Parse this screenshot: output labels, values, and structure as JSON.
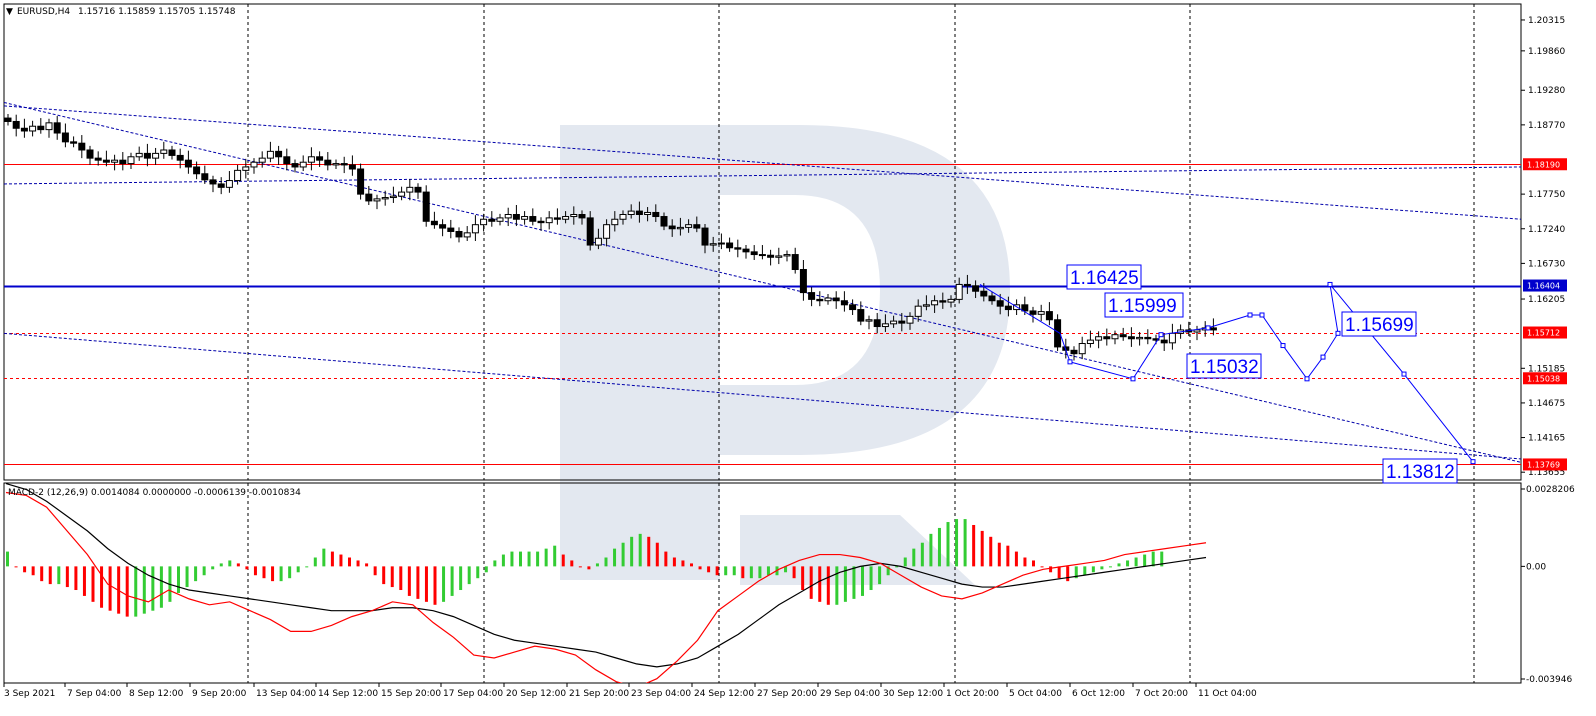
{
  "header": {
    "symbol": "EURUSD,H4",
    "ohlc": "1.15716 1.15859 1.15705 1.15748",
    "macd": "MACD-2 (12,26,9) 0.0014084 0.0000000 -0.0006139 -0.0010834"
  },
  "colors": {
    "resistance": "#ff0000",
    "support": "#0000cc",
    "forecast": "#0000ff",
    "hist_up": "#33cc33",
    "hist_down": "#ff0000",
    "signal": "#000000",
    "macd_line": "#ff0000"
  },
  "chart_data": [
    {
      "type": "candlestick",
      "xlabels": [
        "3 Sep 2021",
        "7 Sep 04:00",
        "8 Sep 12:00",
        "9 Sep 20:00",
        "13 Sep 04:00",
        "14 Sep 12:00",
        "15 Sep 20:00",
        "17 Sep 04:00",
        "20 Sep 12:00",
        "21 Sep 20:00",
        "23 Sep 04:00",
        "24 Sep 12:00",
        "27 Sep 20:00",
        "29 Sep 04:00",
        "30 Sep 12:00",
        "1 Oct 20:00",
        "5 Oct 04:00",
        "6 Oct 12:00",
        "7 Oct 20:00",
        "11 Oct 04:00"
      ],
      "ytick_labels": [
        "1.20315",
        "1.19860",
        "1.19280",
        "1.18770",
        "1.17750",
        "1.17240",
        "1.16730",
        "1.16205",
        "1.15185",
        "1.14675",
        "1.14165",
        "1.13655"
      ],
      "ylim": [
        1.1354,
        1.2055
      ],
      "price_tags": [
        {
          "label": "1.18190",
          "value": 1.1819,
          "color": "#ff0000",
          "style": "solid"
        },
        {
          "label": "1.16404",
          "value": 1.16404,
          "color": "#0000cc",
          "style": "solid"
        },
        {
          "label": "1.15712",
          "value": 1.15712,
          "color": "#ff0000",
          "style": "dashed"
        },
        {
          "label": "1.15038",
          "value": 1.15038,
          "color": "#ff0000",
          "style": "dashed"
        },
        {
          "label": "1.13769",
          "value": 1.13769,
          "color": "#ff0000",
          "style": "solid"
        }
      ],
      "forecast_labels": [
        "1.16425",
        "1.15999",
        "1.15032",
        "1.15699",
        "1.13812"
      ],
      "close_series": [
        1.1882,
        1.1872,
        1.1868,
        1.1875,
        1.187,
        1.188,
        1.1865,
        1.1852,
        1.185,
        1.184,
        1.1828,
        1.1825,
        1.1822,
        1.1825,
        1.182,
        1.183,
        1.1835,
        1.1828,
        1.1835,
        1.184,
        1.1832,
        1.1825,
        1.1815,
        1.1805,
        1.1796,
        1.179,
        1.1785,
        1.1795,
        1.181,
        1.1815,
        1.1822,
        1.1828,
        1.1838,
        1.183,
        1.182,
        1.1815,
        1.1822,
        1.183,
        1.1825,
        1.1818,
        1.182,
        1.1818,
        1.1812,
        1.1775,
        1.1765,
        1.1768,
        1.177,
        1.1772,
        1.1778,
        1.1785,
        1.1778,
        1.1735,
        1.173,
        1.1725,
        1.172,
        1.1712,
        1.1718,
        1.173,
        1.1738,
        1.1735,
        1.174,
        1.1745,
        1.1738,
        1.1742,
        1.1735,
        1.1733,
        1.174,
        1.1738,
        1.1742,
        1.1745,
        1.174,
        1.17,
        1.171,
        1.173,
        1.1738,
        1.1745,
        1.175,
        1.1745,
        1.1748,
        1.1742,
        1.1728,
        1.1724,
        1.1726,
        1.173,
        1.1725,
        1.17,
        1.1702,
        1.1703,
        1.1696,
        1.1694,
        1.169,
        1.1686,
        1.1685,
        1.1682,
        1.1684,
        1.1686,
        1.1664,
        1.163,
        1.162,
        1.1618,
        1.1622,
        1.1618,
        1.1612,
        1.1605,
        1.1588,
        1.159,
        1.158,
        1.1584,
        1.1588,
        1.1585,
        1.1595,
        1.161,
        1.1612,
        1.1618,
        1.1616,
        1.162,
        1.1642,
        1.164,
        1.1632,
        1.1625,
        1.1618,
        1.161,
        1.1605,
        1.1612,
        1.1603,
        1.1598,
        1.1602,
        1.159,
        1.155,
        1.1545,
        1.154,
        1.1555,
        1.156,
        1.1565,
        1.1562,
        1.1568,
        1.1565,
        1.1562,
        1.1564,
        1.1562,
        1.156,
        1.1556,
        1.157,
        1.1575,
        1.1572,
        1.1575,
        1.1578,
        1.1575
      ]
    },
    {
      "type": "bar",
      "name": "MACD-2 (12,26,9)",
      "ytick_labels": [
        "0.0028206",
        "0.00",
        "-0.003946"
      ],
      "ylim": [
        -0.003946,
        0.0028206
      ],
      "histogram": [
        0.0005,
        0.0,
        -0.0002,
        -0.0003,
        -0.0005,
        -0.0006,
        -0.0006,
        -0.0007,
        -0.0008,
        -0.001,
        -0.0012,
        -0.0014,
        -0.0015,
        -0.0016,
        -0.0017,
        -0.0017,
        -0.0016,
        -0.0015,
        -0.0014,
        -0.0012,
        -0.0009,
        -0.0007,
        -0.0005,
        -0.0003,
        -0.0001,
        0.0001,
        0.0002,
        0.0001,
        -0.0001,
        -0.0003,
        -0.0004,
        -0.0005,
        -0.0005,
        -0.0004,
        -0.0002,
        0.0,
        0.0003,
        0.0006,
        0.0005,
        0.0004,
        0.0003,
        0.0002,
        0.0001,
        -0.0003,
        -0.0006,
        -0.0007,
        -0.0008,
        -0.001,
        -0.0011,
        -0.0012,
        -0.0013,
        -0.0012,
        -0.001,
        -0.0008,
        -0.0006,
        -0.0004,
        -0.0002,
        0.0002,
        0.0004,
        0.0005,
        0.0005,
        0.0005,
        0.0005,
        0.0006,
        0.0007,
        0.0004,
        0.0002,
        0.0,
        -0.0001,
        0.0001,
        0.0003,
        0.0006,
        0.0008,
        0.001,
        0.0011,
        0.001,
        0.0008,
        0.0005,
        0.0003,
        0.0002,
        0.0001,
        -0.0001,
        -0.0002,
        -0.0003,
        -0.0003,
        -0.0003,
        -0.0004,
        -0.0004,
        -0.0004,
        -0.0003,
        -0.0003,
        -0.0002,
        -0.0004,
        -0.0008,
        -0.0011,
        -0.0012,
        -0.0013,
        -0.0013,
        -0.0012,
        -0.0011,
        -0.001,
        -0.0008,
        -0.0006,
        -0.0003,
        0.0,
        0.0003,
        0.0006,
        0.0008,
        0.0011,
        0.0013,
        0.0015,
        0.0016,
        0.0016,
        0.0014,
        0.0012,
        0.001,
        0.0008,
        0.0007,
        0.0005,
        0.0003,
        0.0002,
        0.0,
        -0.0002,
        -0.0004,
        -0.0005,
        -0.0004,
        -0.0003,
        -0.0002,
        -0.0001,
        0.0,
        0.0001,
        0.0002,
        0.0003,
        0.0004,
        0.0005,
        0.0005
      ],
      "macd_line": [
        0.0025,
        0.0024,
        0.002,
        0.0012,
        0.0004,
        -0.0006,
        -0.001,
        -0.0012,
        -0.0008,
        -0.0011,
        -0.0013,
        -0.0012,
        -0.0015,
        -0.0018,
        -0.0022,
        -0.0022,
        -0.002,
        -0.0017,
        -0.0015,
        -0.0012,
        -0.0013,
        -0.0019,
        -0.0024,
        -0.003,
        -0.0031,
        -0.0029,
        -0.0027,
        -0.0028,
        -0.003,
        -0.0035,
        -0.0039,
        -0.0041,
        -0.0038,
        -0.0032,
        -0.0025,
        -0.0015,
        -0.001,
        -0.0005,
        -0.0001,
        0.0002,
        0.0004,
        0.0004,
        0.0003,
        0.0001,
        -0.0003,
        -0.0007,
        -0.001,
        -0.0011,
        -0.0009,
        -0.0006,
        -0.0003,
        -0.0001,
        0.0,
        0.0001,
        0.0002,
        0.0004,
        0.0005,
        0.0006,
        0.0007,
        0.0008
      ],
      "signal_line": [
        0.0028,
        0.0026,
        0.0022,
        0.0017,
        0.0012,
        0.0006,
        0.0001,
        -0.0003,
        -0.0006,
        -0.0008,
        -0.0009,
        -0.001,
        -0.0011,
        -0.0012,
        -0.0013,
        -0.0014,
        -0.0015,
        -0.0015,
        -0.0015,
        -0.0014,
        -0.0014,
        -0.0015,
        -0.0017,
        -0.002,
        -0.0023,
        -0.0025,
        -0.0026,
        -0.0027,
        -0.0028,
        -0.0029,
        -0.0031,
        -0.0033,
        -0.0034,
        -0.0033,
        -0.0031,
        -0.0027,
        -0.0023,
        -0.0018,
        -0.0013,
        -0.0009,
        -0.0005,
        -0.0002,
        0.0,
        0.0001,
        0.0,
        -0.0002,
        -0.0004,
        -0.0006,
        -0.0007,
        -0.0007,
        -0.0006,
        -0.0005,
        -0.0004,
        -0.0003,
        -0.0002,
        -0.0001,
        0.0,
        0.0001,
        0.0002,
        0.0003
      ]
    }
  ]
}
